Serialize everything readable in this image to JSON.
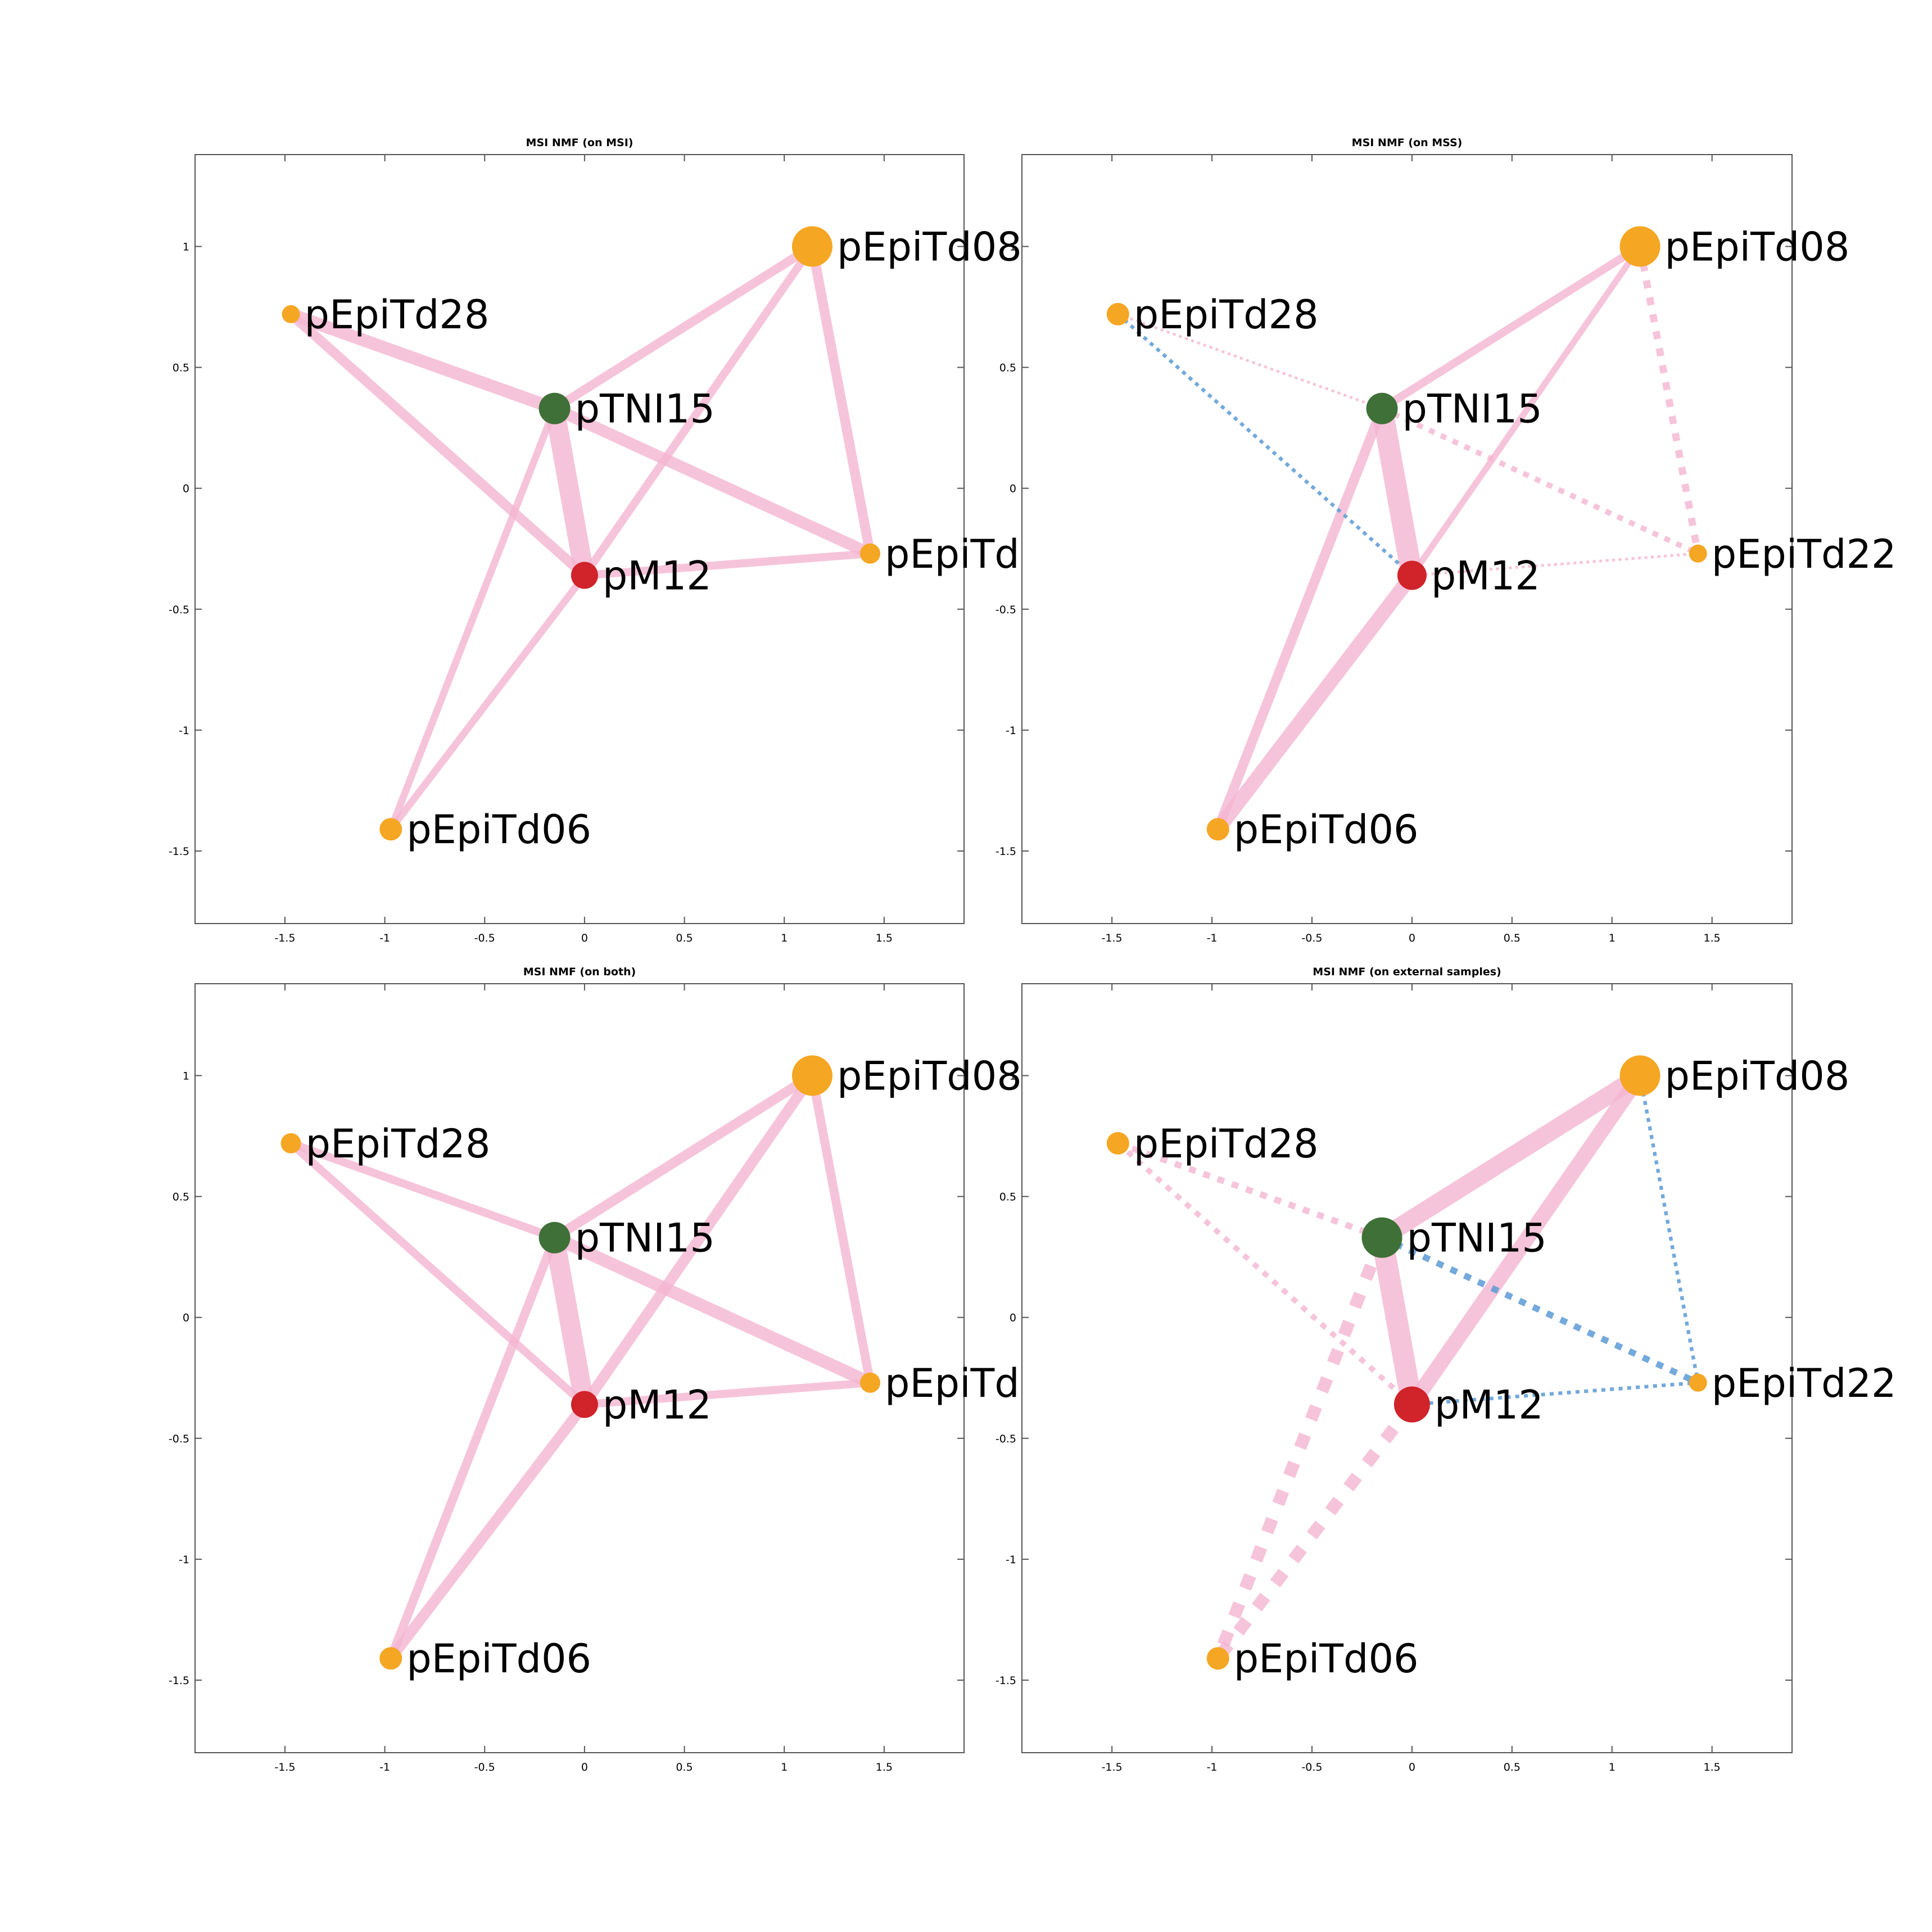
{
  "colors": {
    "edge_positive": "#f4b6d2",
    "edge_negative": "#5b9bd5",
    "node_orange": "#f5a623",
    "node_green": "#3f7038",
    "node_red": "#d0232a"
  },
  "axes": {
    "xlim": [
      -1.95,
      1.9
    ],
    "ylim": [
      -1.8,
      1.38
    ],
    "x_ticks": [
      -1.5,
      -1,
      -0.5,
      0,
      0.5,
      1,
      1.5
    ],
    "x_tick_labels": [
      "-1.5",
      "-1",
      "-0.5",
      "0",
      "0.5",
      "1",
      "1.5"
    ],
    "y_ticks": [
      1,
      0.5,
      0,
      -0.5,
      -1,
      -1.5
    ],
    "y_tick_labels": [
      "1",
      "0.5",
      "0",
      "-0.5",
      "-1",
      "-1.5"
    ]
  },
  "chart_data": [
    {
      "type": "network",
      "title": "MSI NMF (on MSI)",
      "nodes": [
        {
          "id": "pEpiTd08",
          "label": "pEpiTd08",
          "x": 1.14,
          "y": 1.0,
          "size": 18,
          "color": "orange"
        },
        {
          "id": "pEpiTd28",
          "label": "pEpiTd28",
          "x": -1.47,
          "y": 0.72,
          "size": 8,
          "color": "orange"
        },
        {
          "id": "pTNI15",
          "label": "pTNI15",
          "x": -0.15,
          "y": 0.33,
          "size": 14,
          "color": "green"
        },
        {
          "id": "pEpiTd22",
          "label": "pEpiTd",
          "x": 1.43,
          "y": -0.27,
          "size": 9,
          "color": "orange"
        },
        {
          "id": "pM12",
          "label": "pM12",
          "x": 0.0,
          "y": -0.36,
          "size": 12,
          "color": "red"
        },
        {
          "id": "pEpiTd06",
          "label": "pEpiTd06",
          "x": -0.97,
          "y": -1.41,
          "size": 10,
          "color": "orange"
        }
      ],
      "edges": [
        {
          "from": "pEpiTd28",
          "to": "pTNI15",
          "weight": 14,
          "sign": "positive",
          "style": "solid"
        },
        {
          "from": "pEpiTd28",
          "to": "pM12",
          "weight": 11,
          "sign": "positive",
          "style": "solid"
        },
        {
          "from": "pTNI15",
          "to": "pEpiTd08",
          "weight": 10,
          "sign": "positive",
          "style": "solid"
        },
        {
          "from": "pTNI15",
          "to": "pM12",
          "weight": 22,
          "sign": "positive",
          "style": "solid"
        },
        {
          "from": "pTNI15",
          "to": "pEpiTd22",
          "weight": 13,
          "sign": "positive",
          "style": "solid"
        },
        {
          "from": "pTNI15",
          "to": "pEpiTd06",
          "weight": 8,
          "sign": "positive",
          "style": "solid"
        },
        {
          "from": "pEpiTd08",
          "to": "pM12",
          "weight": 9,
          "sign": "positive",
          "style": "solid"
        },
        {
          "from": "pEpiTd08",
          "to": "pEpiTd22",
          "weight": 11,
          "sign": "positive",
          "style": "solid"
        },
        {
          "from": "pM12",
          "to": "pEpiTd22",
          "weight": 9,
          "sign": "positive",
          "style": "solid"
        },
        {
          "from": "pM12",
          "to": "pEpiTd06",
          "weight": 8,
          "sign": "positive",
          "style": "solid"
        }
      ]
    },
    {
      "type": "network",
      "title": "MSI NMF (on MSS)",
      "nodes": [
        {
          "id": "pEpiTd08",
          "label": "pEpiTd08",
          "x": 1.14,
          "y": 1.0,
          "size": 18,
          "color": "orange"
        },
        {
          "id": "pEpiTd28",
          "label": "pEpiTd28",
          "x": -1.47,
          "y": 0.72,
          "size": 10,
          "color": "orange"
        },
        {
          "id": "pTNI15",
          "label": "pTNI15",
          "x": -0.15,
          "y": 0.33,
          "size": 14,
          "color": "green"
        },
        {
          "id": "pEpiTd22",
          "label": "pEpiTd22",
          "x": 1.43,
          "y": -0.27,
          "size": 8,
          "color": "orange"
        },
        {
          "id": "pM12",
          "label": "pM12",
          "x": 0.0,
          "y": -0.36,
          "size": 13,
          "color": "red"
        },
        {
          "id": "pEpiTd06",
          "label": "pEpiTd06",
          "x": -0.97,
          "y": -1.41,
          "size": 10,
          "color": "orange"
        }
      ],
      "edges": [
        {
          "from": "pTNI15",
          "to": "pEpiTd08",
          "weight": 9,
          "sign": "positive",
          "style": "solid"
        },
        {
          "from": "pTNI15",
          "to": "pM12",
          "weight": 24,
          "sign": "positive",
          "style": "solid"
        },
        {
          "from": "pTNI15",
          "to": "pEpiTd06",
          "weight": 11,
          "sign": "positive",
          "style": "solid"
        },
        {
          "from": "pEpiTd08",
          "to": "pM12",
          "weight": 7,
          "sign": "positive",
          "style": "solid"
        },
        {
          "from": "pM12",
          "to": "pEpiTd06",
          "weight": 16,
          "sign": "positive",
          "style": "solid"
        },
        {
          "from": "pEpiTd28",
          "to": "pTNI15",
          "weight": 3,
          "sign": "positive",
          "style": "dotted"
        },
        {
          "from": "pTNI15",
          "to": "pEpiTd22",
          "weight": 6,
          "sign": "positive",
          "style": "dotted"
        },
        {
          "from": "pEpiTd08",
          "to": "pEpiTd22",
          "weight": 8,
          "sign": "positive",
          "style": "dotted"
        },
        {
          "from": "pM12",
          "to": "pEpiTd22",
          "weight": 3,
          "sign": "positive",
          "style": "dotted"
        },
        {
          "from": "pEpiTd28",
          "to": "pM12",
          "weight": 4,
          "sign": "negative",
          "style": "dotted"
        }
      ]
    },
    {
      "type": "network",
      "title": "MSI NMF (on both)",
      "nodes": [
        {
          "id": "pEpiTd08",
          "label": "pEpiTd08",
          "x": 1.14,
          "y": 1.0,
          "size": 18,
          "color": "orange"
        },
        {
          "id": "pEpiTd28",
          "label": "pEpiTd28",
          "x": -1.47,
          "y": 0.72,
          "size": 9,
          "color": "orange"
        },
        {
          "id": "pTNI15",
          "label": "pTNI15",
          "x": -0.15,
          "y": 0.33,
          "size": 14,
          "color": "green"
        },
        {
          "id": "pEpiTd22",
          "label": "pEpiTd",
          "x": 1.43,
          "y": -0.27,
          "size": 9,
          "color": "orange"
        },
        {
          "id": "pM12",
          "label": "pM12",
          "x": 0.0,
          "y": -0.36,
          "size": 12,
          "color": "red"
        },
        {
          "id": "pEpiTd06",
          "label": "pEpiTd06",
          "x": -0.97,
          "y": -1.41,
          "size": 10,
          "color": "orange"
        }
      ],
      "edges": [
        {
          "from": "pEpiTd28",
          "to": "pTNI15",
          "weight": 9,
          "sign": "positive",
          "style": "solid"
        },
        {
          "from": "pEpiTd28",
          "to": "pM12",
          "weight": 9,
          "sign": "positive",
          "style": "solid"
        },
        {
          "from": "pTNI15",
          "to": "pEpiTd08",
          "weight": 11,
          "sign": "positive",
          "style": "solid"
        },
        {
          "from": "pTNI15",
          "to": "pM12",
          "weight": 22,
          "sign": "positive",
          "style": "solid"
        },
        {
          "from": "pTNI15",
          "to": "pEpiTd22",
          "weight": 14,
          "sign": "positive",
          "style": "solid"
        },
        {
          "from": "pTNI15",
          "to": "pEpiTd06",
          "weight": 10,
          "sign": "positive",
          "style": "solid"
        },
        {
          "from": "pEpiTd08",
          "to": "pM12",
          "weight": 12,
          "sign": "positive",
          "style": "solid"
        },
        {
          "from": "pEpiTd08",
          "to": "pEpiTd22",
          "weight": 10,
          "sign": "positive",
          "style": "solid"
        },
        {
          "from": "pM12",
          "to": "pEpiTd22",
          "weight": 9,
          "sign": "positive",
          "style": "solid"
        },
        {
          "from": "pM12",
          "to": "pEpiTd06",
          "weight": 12,
          "sign": "positive",
          "style": "solid"
        }
      ]
    },
    {
      "type": "network",
      "title": "MSI NMF (on external samples)",
      "nodes": [
        {
          "id": "pEpiTd08",
          "label": "pEpiTd08",
          "x": 1.14,
          "y": 1.0,
          "size": 18,
          "color": "orange"
        },
        {
          "id": "pEpiTd28",
          "label": "pEpiTd28",
          "x": -1.47,
          "y": 0.72,
          "size": 10,
          "color": "orange"
        },
        {
          "id": "pTNI15",
          "label": "pTNI15",
          "x": -0.15,
          "y": 0.33,
          "size": 18,
          "color": "green"
        },
        {
          "id": "pEpiTd22",
          "label": "pEpiTd22",
          "x": 1.43,
          "y": -0.27,
          "size": 8,
          "color": "orange"
        },
        {
          "id": "pM12",
          "label": "pM12",
          "x": 0.0,
          "y": -0.36,
          "size": 16,
          "color": "red"
        },
        {
          "id": "pEpiTd06",
          "label": "pEpiTd06",
          "x": -0.97,
          "y": -1.41,
          "size": 10,
          "color": "orange"
        }
      ],
      "edges": [
        {
          "from": "pTNI15",
          "to": "pEpiTd08",
          "weight": 20,
          "sign": "positive",
          "style": "solid"
        },
        {
          "from": "pTNI15",
          "to": "pM12",
          "weight": 24,
          "sign": "positive",
          "style": "solid"
        },
        {
          "from": "pEpiTd08",
          "to": "pM12",
          "weight": 17,
          "sign": "positive",
          "style": "solid"
        },
        {
          "from": "pEpiTd28",
          "to": "pTNI15",
          "weight": 7,
          "sign": "positive",
          "style": "dotted"
        },
        {
          "from": "pEpiTd28",
          "to": "pM12",
          "weight": 6,
          "sign": "positive",
          "style": "dotted"
        },
        {
          "from": "pTNI15",
          "to": "pEpiTd06",
          "weight": 14,
          "sign": "positive",
          "style": "dotted"
        },
        {
          "from": "pM12",
          "to": "pEpiTd06",
          "weight": 14,
          "sign": "positive",
          "style": "dotted"
        },
        {
          "from": "pTNI15",
          "to": "pEpiTd22",
          "weight": 7,
          "sign": "negative",
          "style": "dotted"
        },
        {
          "from": "pEpiTd08",
          "to": "pEpiTd22",
          "weight": 4,
          "sign": "negative",
          "style": "dotted"
        },
        {
          "from": "pM12",
          "to": "pEpiTd22",
          "weight": 4,
          "sign": "negative",
          "style": "dotted"
        }
      ]
    }
  ]
}
